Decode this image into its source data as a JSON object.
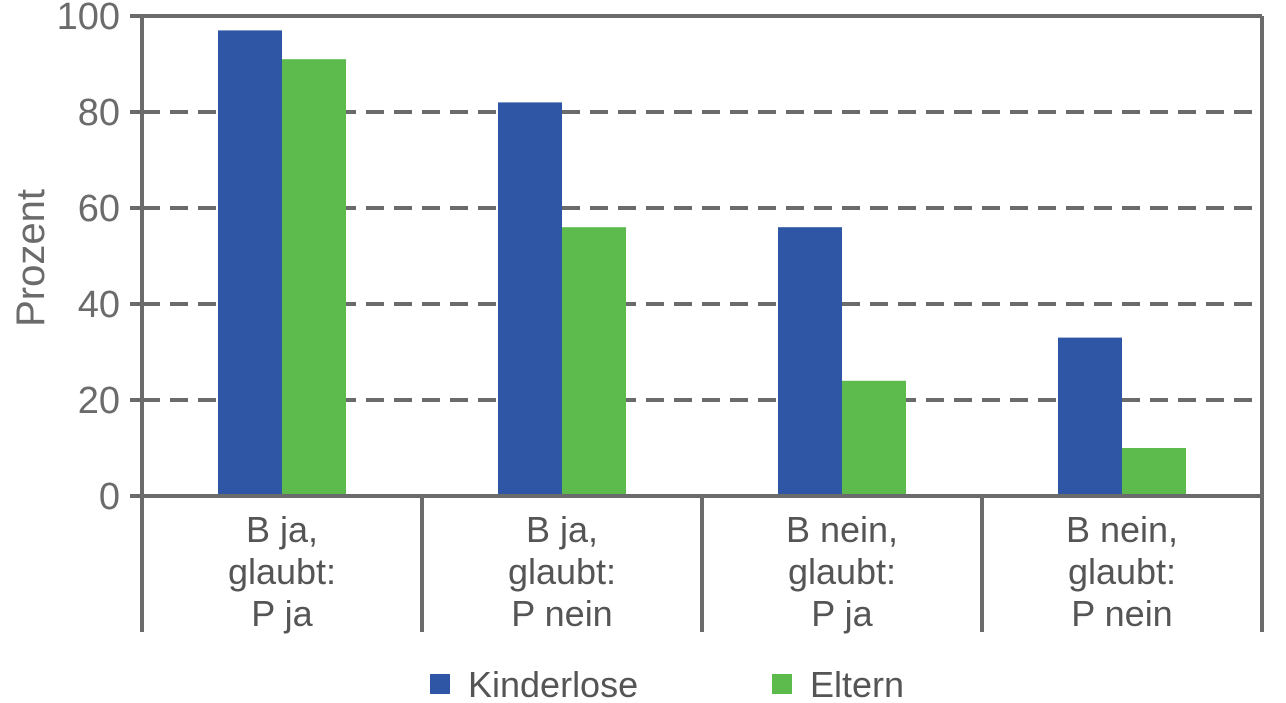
{
  "chart_data": {
    "type": "bar",
    "title": "",
    "xlabel": "",
    "ylabel": "Prozent",
    "ylim": [
      0,
      100
    ],
    "yticks": [
      0,
      20,
      40,
      60,
      80,
      100
    ],
    "grid": "dashed horizontal",
    "legend_position": "bottom",
    "categories": [
      [
        "B ja,",
        "glaubt:",
        "P ja"
      ],
      [
        "B ja,",
        "glaubt:",
        "P nein"
      ],
      [
        "B nein,",
        "glaubt:",
        "P ja"
      ],
      [
        "B nein,",
        "glaubt:",
        "P nein"
      ]
    ],
    "series": [
      {
        "name": "Kinderlose",
        "color": "#2e56a4",
        "values": [
          97,
          82,
          56,
          33
        ]
      },
      {
        "name": "Eltern",
        "color": "#5cbb4c",
        "values": [
          91,
          56,
          24,
          10
        ]
      }
    ],
    "axis_color": "#6b6b6b"
  }
}
